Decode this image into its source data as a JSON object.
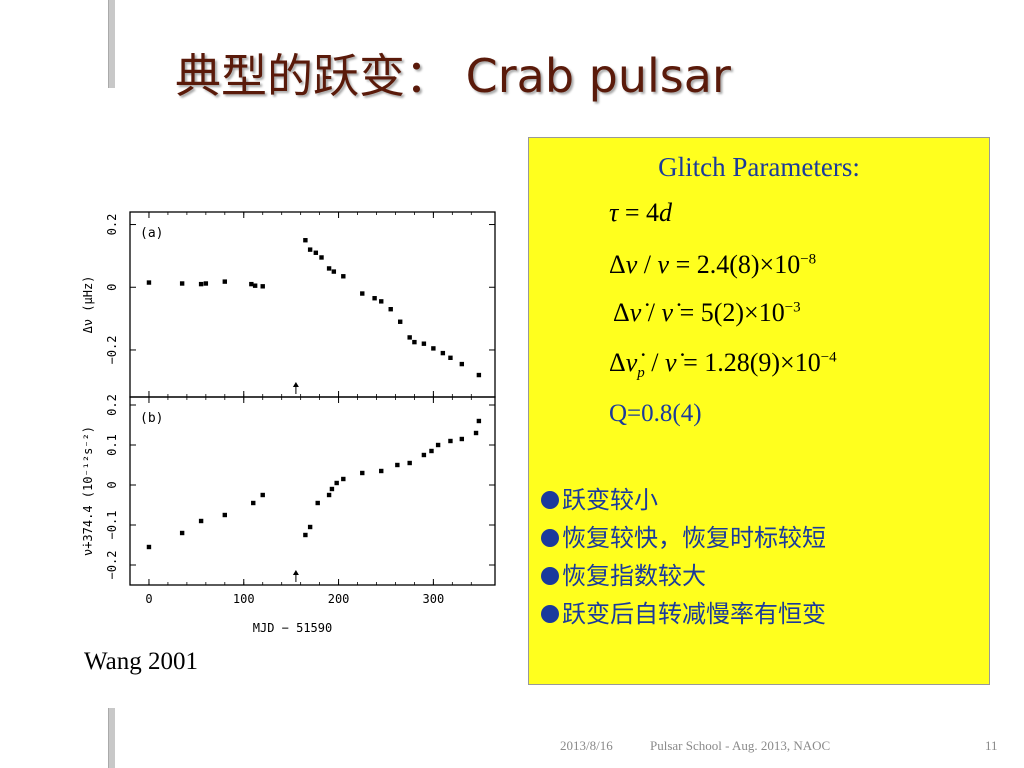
{
  "slide": {
    "title": "典型的跃变： Crab pulsar",
    "credit": "Wang 2001",
    "footer_date": "2013/8/16",
    "footer_center": "Pulsar School  - Aug. 2013, NAOC",
    "footer_page": "11"
  },
  "panel": {
    "title": "Glitch Parameters:",
    "q": "Q=0.8(4)",
    "bullets": [
      "跃变较小",
      "恢复较快，恢复时标较短",
      "恢复指数较大",
      "跃变后自转减慢率有恒变"
    ]
  },
  "colors": {
    "title": "#5a1a0a",
    "panel_bg": "#ffff1e",
    "accent": "#1a3a9c"
  },
  "chart_data": {
    "type": "scatter",
    "xlabel": "MJD − 51590",
    "xlim": [
      -20,
      365
    ],
    "x_ticks": [
      "0",
      "100",
      "200",
      "300"
    ],
    "glitch_epoch": 155,
    "panels": [
      {
        "label": "(a)",
        "ylabel": "Δν (μHz)",
        "ylim": [
          -0.35,
          0.24
        ],
        "y_ticks": [
          "0.2",
          "0",
          "−0.2"
        ],
        "points": [
          [
            0,
            0.015
          ],
          [
            35,
            0.012
          ],
          [
            55,
            0.01
          ],
          [
            60,
            0.012
          ],
          [
            80,
            0.018
          ],
          [
            108,
            0.01
          ],
          [
            112,
            0.005
          ],
          [
            120,
            0.003
          ],
          [
            165,
            0.15
          ],
          [
            170,
            0.12
          ],
          [
            176,
            0.11
          ],
          [
            182,
            0.095
          ],
          [
            190,
            0.06
          ],
          [
            195,
            0.05
          ],
          [
            205,
            0.035
          ],
          [
            225,
            -0.02
          ],
          [
            238,
            -0.035
          ],
          [
            245,
            -0.045
          ],
          [
            255,
            -0.07
          ],
          [
            265,
            -0.11
          ],
          [
            275,
            -0.16
          ],
          [
            280,
            -0.175
          ],
          [
            290,
            -0.18
          ],
          [
            300,
            -0.195
          ],
          [
            310,
            -0.21
          ],
          [
            318,
            -0.225
          ],
          [
            330,
            -0.245
          ],
          [
            348,
            -0.28
          ]
        ]
      },
      {
        "label": "(b)",
        "ylabel": "ν̇+374.4 (10⁻¹²s⁻²)",
        "ylim": [
          -0.25,
          0.22
        ],
        "y_ticks": [
          "0.2",
          "0.1",
          "0",
          "−0.1",
          "−0.2"
        ],
        "points": [
          [
            0,
            -0.155
          ],
          [
            35,
            -0.12
          ],
          [
            55,
            -0.09
          ],
          [
            80,
            -0.075
          ],
          [
            110,
            -0.045
          ],
          [
            120,
            -0.025
          ],
          [
            165,
            -0.125
          ],
          [
            170,
            -0.105
          ],
          [
            178,
            -0.045
          ],
          [
            190,
            -0.025
          ],
          [
            193,
            -0.01
          ],
          [
            198,
            0.005
          ],
          [
            205,
            0.015
          ],
          [
            225,
            0.03
          ],
          [
            245,
            0.035
          ],
          [
            262,
            0.05
          ],
          [
            275,
            0.055
          ],
          [
            290,
            0.075
          ],
          [
            298,
            0.085
          ],
          [
            305,
            0.1
          ],
          [
            318,
            0.11
          ],
          [
            330,
            0.115
          ],
          [
            345,
            0.13
          ],
          [
            348,
            0.16
          ]
        ]
      }
    ]
  }
}
